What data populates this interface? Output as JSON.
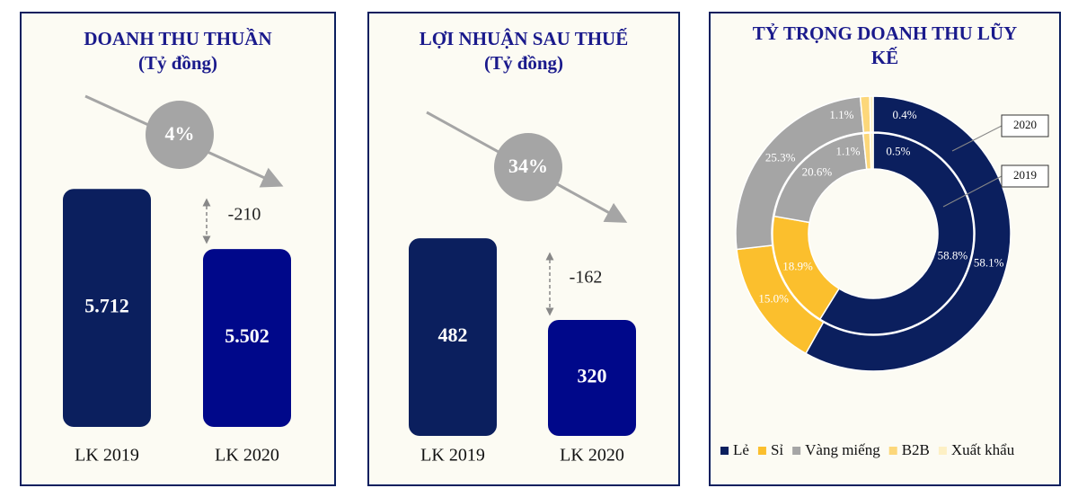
{
  "chart_data": [
    {
      "type": "bar",
      "title": "DOANH THU THUẦN",
      "subtitle": "(Tỷ đồng)",
      "categories": [
        "LK 2019",
        "LK 2020"
      ],
      "values": [
        5712,
        5502
      ],
      "value_labels": [
        "5.712",
        "5.502"
      ],
      "colors": [
        "#0b1f5e",
        "#00088a"
      ],
      "ylim": [
        4880,
        5760
      ],
      "change": "4%",
      "difference": -210
    },
    {
      "type": "bar",
      "title": "LỢI NHUẬN SAU THUẾ",
      "subtitle": "(Tỷ đồng)",
      "categories": [
        "LK 2019",
        "LK 2020"
      ],
      "values": [
        482,
        320
      ],
      "colors": [
        "#0b1f5e",
        "#00088a"
      ],
      "ylim": [
        90,
        500
      ],
      "change": "34%",
      "difference": -162
    },
    {
      "type": "donut",
      "title": "TỶ TRỌNG DOANH THU LŨY KẾ",
      "categories": [
        "Lẻ",
        "Sỉ",
        "Vàng miếng",
        "B2B",
        "Xuất khẩu"
      ],
      "colors": [
        "#0b1f5e",
        "#fbbf2d",
        "#a5a5a5",
        "#fcd77a",
        "#fdf0c4"
      ],
      "series": [
        {
          "name": "2020",
          "values": [
            58.1,
            15.0,
            25.3,
            1.1,
            0.4
          ],
          "value_labels": [
            "58.1%",
            "15.0%",
            "25.3%",
            "1.1%",
            "0.4%"
          ]
        },
        {
          "name": "2019",
          "values": [
            58.8,
            18.9,
            20.6,
            1.1,
            0.5
          ],
          "value_labels": [
            "58.8%",
            "18.9%",
            "20.6%",
            "1.1%",
            "0.5%"
          ]
        }
      ]
    }
  ]
}
